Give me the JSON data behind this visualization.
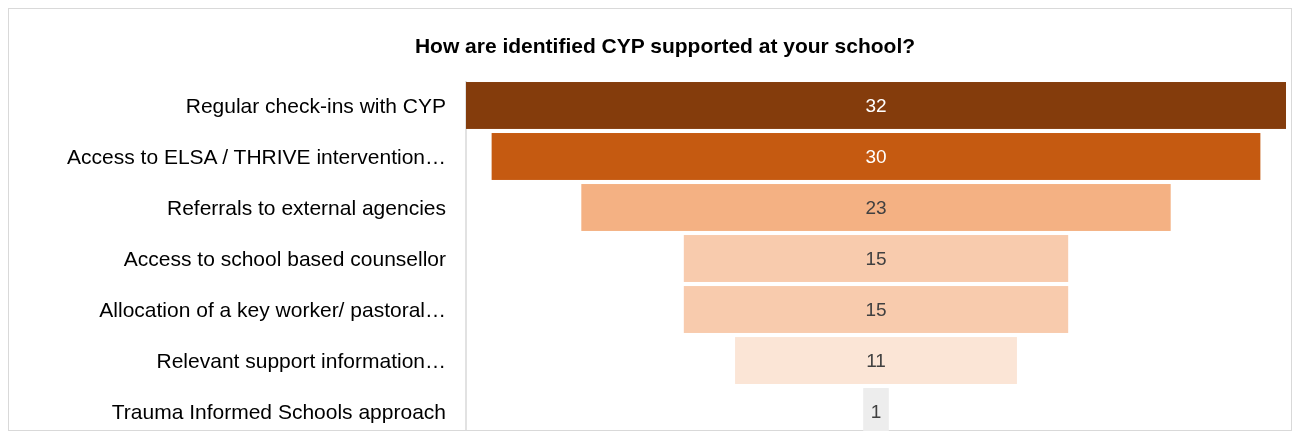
{
  "chart_data": {
    "type": "other",
    "title": "How are identified CYP supported at your school?",
    "categories": [
      "Regular check-ins with CYP",
      "Access to ELSA / THRIVE intervention…",
      "Referrals to external agencies",
      "Access to school based counsellor",
      "Allocation of a key worker/ pastoral…",
      "Relevant support information…",
      "Trauma Informed Schools approach"
    ],
    "values": [
      32,
      30,
      23,
      15,
      15,
      11,
      1
    ],
    "colors": [
      "#843c0c",
      "#c55a11",
      "#f4b183",
      "#f8cbad",
      "#f8cbad",
      "#fbe5d6",
      "#ededed"
    ],
    "data_labels": true
  }
}
